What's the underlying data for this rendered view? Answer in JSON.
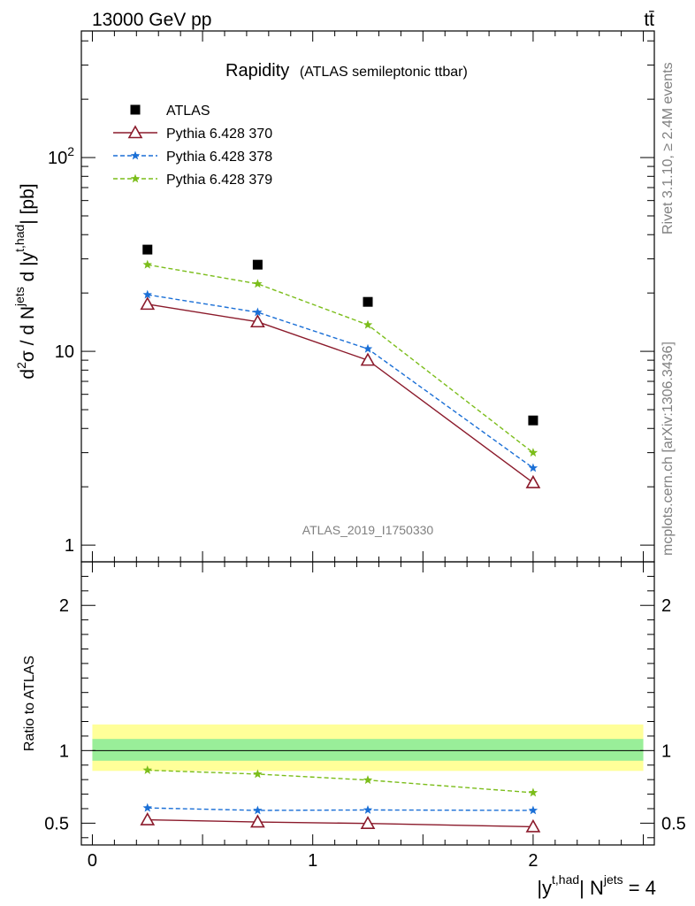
{
  "header": {
    "energy_label": "13000 GeV pp",
    "process_label": "tt̄"
  },
  "side_labels": {
    "rivet": "Rivet 3.1.10, ≥ 2.4M events",
    "mcplots": "mcplots.cern.ch [arXiv:1306.3436]"
  },
  "watermark": "ATLAS_2019_I1750330",
  "chart_data": [
    {
      "type": "scatter",
      "title": "Rapidity",
      "subtitle": "(ATLAS semileptonic ttbar)",
      "xlabel": "|y^{t,had}| N^{jets} = 4",
      "ylabel": "d²σ / d N^{jets} d |y^{t,had}| [pb]",
      "yscale": "log",
      "xlim": [
        -0.05,
        2.55
      ],
      "ylim": [
        0.82,
        450
      ],
      "y_tick_labels": [
        "1",
        "10",
        "10²"
      ],
      "x": [
        0.25,
        0.75,
        1.25,
        2.0
      ],
      "legend_position": "top-left",
      "series": [
        {
          "name": "ATLAS",
          "values": [
            33.5,
            28.0,
            18.0,
            4.4
          ],
          "color": "#000000",
          "marker": "square"
        },
        {
          "name": "Pythia 6.428 370",
          "values": [
            17.5,
            14.2,
            9.0,
            2.1
          ],
          "color": "#8b1a2b",
          "marker": "open-triangle",
          "line": "solid"
        },
        {
          "name": "Pythia 6.428 378",
          "values": [
            19.6,
            15.9,
            10.3,
            2.5
          ],
          "color": "#1a6fd6",
          "marker": "star",
          "line": "dashed"
        },
        {
          "name": "Pythia 6.428 379",
          "values": [
            28.0,
            22.3,
            13.7,
            3.0
          ],
          "color": "#7bbd1a",
          "marker": "star",
          "line": "dashed"
        }
      ]
    },
    {
      "type": "line",
      "ylabel": "Ratio to ATLAS",
      "ylim": [
        0.35,
        2.3
      ],
      "xlim": [
        -0.05,
        2.55
      ],
      "x_tick_labels": [
        "0",
        "1",
        "2"
      ],
      "y_tick_labels": [
        "0.5",
        "1",
        "2"
      ],
      "x": [
        0.25,
        0.75,
        1.25,
        2.0
      ],
      "bands": {
        "outer": {
          "low": 0.86,
          "high": 1.18,
          "color": "#ffff99"
        },
        "inner": {
          "low": 0.93,
          "high": 1.08,
          "color": "#99ee99"
        }
      },
      "series": [
        {
          "name": "Pythia 6.428 370",
          "values": [
            0.523,
            0.508,
            0.498,
            0.475
          ],
          "color": "#8b1a2b",
          "marker": "open-triangle",
          "line": "solid"
        },
        {
          "name": "Pythia 6.428 378",
          "values": [
            0.605,
            0.588,
            0.591,
            0.588
          ],
          "color": "#1a6fd6",
          "marker": "star",
          "line": "dashed"
        },
        {
          "name": "Pythia 6.428 379",
          "values": [
            0.865,
            0.838,
            0.797,
            0.71
          ],
          "color": "#7bbd1a",
          "marker": "star",
          "line": "dashed"
        }
      ]
    }
  ]
}
